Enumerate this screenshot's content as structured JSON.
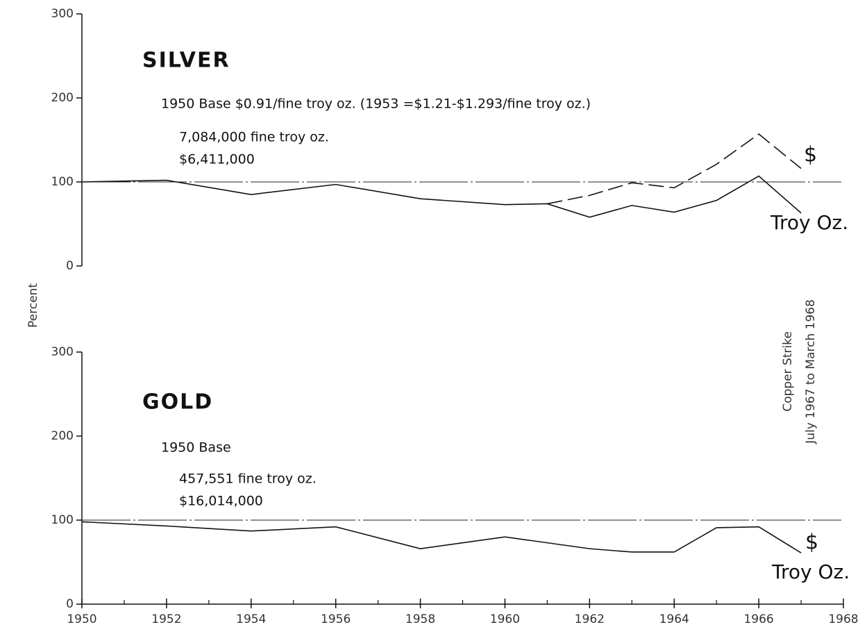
{
  "ylabel": "Percent",
  "annotation": [
    "Copper Strike",
    "July 1967 to March 1968"
  ],
  "chart_data": [
    {
      "type": "line",
      "title": "SILVER",
      "subtitle": [
        "1950 Base $0.91/fine troy oz. (1953 =$1.21-$1.293/fine troy oz.)",
        "7,084,000 fine troy oz.",
        "$6,411,000"
      ],
      "x": [
        1950,
        1952,
        1954,
        1956,
        1958,
        1960,
        1961,
        1962,
        1963,
        1964,
        1965,
        1966,
        1967
      ],
      "series": [
        {
          "name": "Troy Oz.",
          "color": "#111111",
          "style": "solid",
          "values": [
            100,
            102,
            85,
            97,
            80,
            73,
            74,
            58,
            72,
            64,
            78,
            107,
            63
          ]
        },
        {
          "name": "$",
          "color": "#111111",
          "style": "dashed",
          "values": [
            null,
            null,
            null,
            null,
            null,
            null,
            74,
            84,
            99,
            93,
            121,
            157,
            116
          ]
        }
      ],
      "reference": 100,
      "xlim": [
        1950,
        1968
      ],
      "ylim": [
        0,
        300
      ],
      "yticks": [
        0,
        100,
        200,
        300
      ]
    },
    {
      "type": "line",
      "title": "GOLD",
      "subtitle": [
        "1950 Base",
        "457,551 fine troy oz.",
        "$16,014,000"
      ],
      "x": [
        1950,
        1952,
        1954,
        1956,
        1958,
        1960,
        1962,
        1963,
        1964,
        1965,
        1966,
        1967
      ],
      "series": [
        {
          "name": "Troy Oz.",
          "color": "#111111",
          "style": "solid",
          "values": [
            98,
            93,
            87,
            92,
            66,
            80,
            66,
            62,
            62,
            91,
            92,
            61
          ]
        }
      ],
      "series_label": "$",
      "reference": 100,
      "xlim": [
        1950,
        1968
      ],
      "xticks": [
        1950,
        1952,
        1954,
        1956,
        1958,
        1960,
        1962,
        1964,
        1966,
        1968
      ],
      "xminorticks": [
        1951,
        1953,
        1955,
        1957,
        1959,
        1961,
        1963,
        1965,
        1967
      ],
      "ylim": [
        0,
        300
      ],
      "yticks": [
        0,
        100,
        200,
        300
      ]
    }
  ]
}
